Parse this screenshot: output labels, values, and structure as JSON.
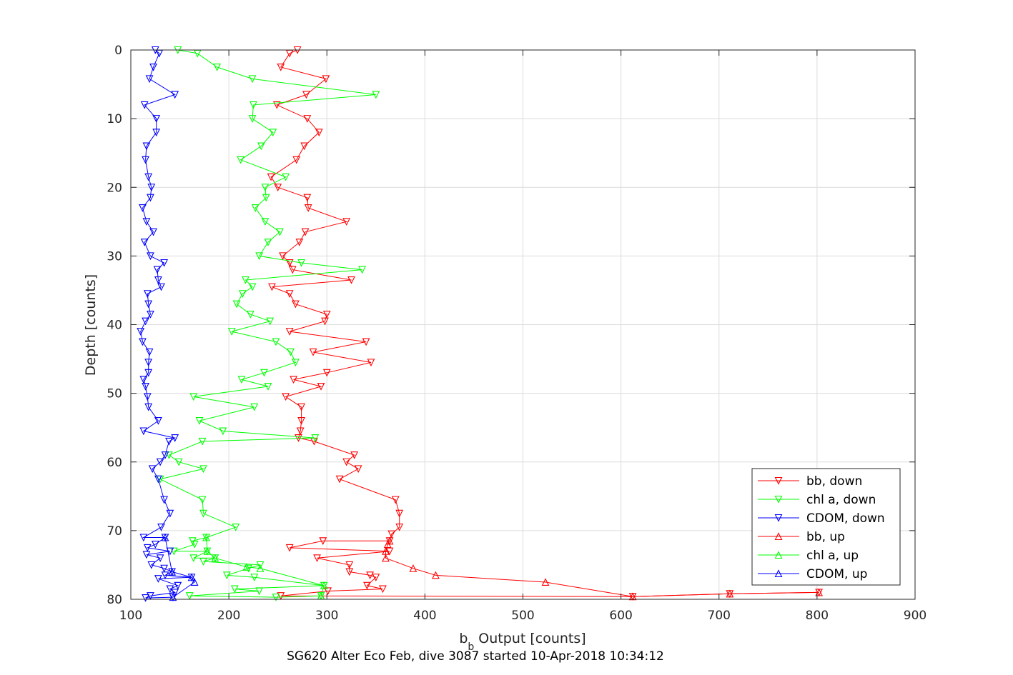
{
  "chart_data": {
    "type": "line",
    "title": "",
    "xlabel": "b",
    "xlabel_sub": "b",
    "xlabel_rest": " Output [counts]",
    "ylabel": "Depth [counts]",
    "caption": "SG620 Alter Eco Feb, dive 3087 started 10-Apr-2018 10:34:12",
    "xlim": [
      100,
      900
    ],
    "ylim": [
      0,
      80
    ],
    "y_reversed": true,
    "xticks": [
      100,
      200,
      300,
      400,
      500,
      600,
      700,
      800,
      900
    ],
    "yticks": [
      0,
      10,
      20,
      30,
      40,
      50,
      60,
      70,
      80
    ],
    "grid": true,
    "legend_position": "bottom-right",
    "series": [
      {
        "name": "bb, down",
        "color": "#ff0000",
        "marker": "triangle-down",
        "points": [
          [
            270,
            0
          ],
          [
            262,
            0.5
          ],
          [
            253,
            2.5
          ],
          [
            299,
            4.2
          ],
          [
            279,
            6.5
          ],
          [
            249,
            8
          ],
          [
            280,
            10
          ],
          [
            292,
            12
          ],
          [
            277,
            14
          ],
          [
            269,
            16
          ],
          [
            243,
            18.5
          ],
          [
            250,
            20
          ],
          [
            280,
            21.5
          ],
          [
            281,
            23
          ],
          [
            320,
            25
          ],
          [
            278,
            26.5
          ],
          [
            272,
            28
          ],
          [
            255,
            30
          ],
          [
            262,
            31
          ],
          [
            265,
            32
          ],
          [
            325,
            33.5
          ],
          [
            244,
            34.5
          ],
          [
            262,
            35.5
          ],
          [
            268,
            37
          ],
          [
            300,
            38.5
          ],
          [
            298,
            39.5
          ],
          [
            262,
            41
          ],
          [
            340,
            42.5
          ],
          [
            286,
            44
          ],
          [
            345,
            45.5
          ],
          [
            300,
            47
          ],
          [
            266,
            48
          ],
          [
            294,
            49
          ],
          [
            258,
            50.5
          ],
          [
            274,
            52
          ],
          [
            274,
            54
          ],
          [
            273,
            55.5
          ],
          [
            271,
            56.5
          ],
          [
            287,
            57
          ],
          [
            328,
            59
          ],
          [
            320,
            60
          ],
          [
            332,
            61
          ],
          [
            313,
            62.5
          ],
          [
            370,
            65.5
          ],
          [
            374,
            67.5
          ],
          [
            374,
            69.5
          ],
          [
            366,
            70.5
          ],
          [
            364,
            71.5
          ],
          [
            296,
            71.5
          ],
          [
            262,
            72.5
          ],
          [
            364,
            73
          ],
          [
            290,
            74
          ],
          [
            323,
            75
          ],
          [
            323,
            76
          ],
          [
            344,
            76.5
          ],
          [
            350,
            76.8
          ],
          [
            341,
            78
          ],
          [
            357,
            78.5
          ],
          [
            301,
            78.8
          ],
          [
            253,
            79.5
          ],
          [
            612,
            79.6
          ],
          [
            711,
            79.2
          ],
          [
            802,
            79
          ]
        ]
      },
      {
        "name": "chl a, down",
        "color": "#00ff00",
        "marker": "triangle-down",
        "points": [
          [
            148,
            0
          ],
          [
            168,
            0.5
          ],
          [
            188,
            2.5
          ],
          [
            224,
            4.2
          ],
          [
            350,
            6.5
          ],
          [
            225,
            8
          ],
          [
            224,
            10
          ],
          [
            245,
            12
          ],
          [
            233,
            14
          ],
          [
            212,
            16
          ],
          [
            258,
            18.5
          ],
          [
            237,
            20
          ],
          [
            238,
            21.5
          ],
          [
            227,
            23
          ],
          [
            237,
            25
          ],
          [
            252,
            26.5
          ],
          [
            240,
            28
          ],
          [
            231,
            30
          ],
          [
            274,
            31
          ],
          [
            336,
            32
          ],
          [
            217,
            33.5
          ],
          [
            224,
            34.5
          ],
          [
            214,
            35.5
          ],
          [
            208,
            37
          ],
          [
            222,
            38.5
          ],
          [
            242,
            39.5
          ],
          [
            203,
            41
          ],
          [
            248,
            42.5
          ],
          [
            263,
            44
          ],
          [
            268,
            45.5
          ],
          [
            236,
            47
          ],
          [
            213,
            48
          ],
          [
            240,
            49
          ],
          [
            164,
            50.5
          ],
          [
            226,
            52
          ],
          [
            170,
            54
          ],
          [
            194,
            55.5
          ],
          [
            288,
            56.5
          ],
          [
            173,
            57
          ],
          [
            139,
            59
          ],
          [
            149,
            60
          ],
          [
            174,
            61
          ],
          [
            130,
            62.5
          ],
          [
            173,
            65.5
          ],
          [
            174,
            67.5
          ],
          [
            207,
            69.5
          ],
          [
            177,
            71
          ],
          [
            163,
            71.5
          ],
          [
            165,
            72
          ],
          [
            144,
            73
          ],
          [
            178,
            73
          ],
          [
            164,
            74
          ],
          [
            186,
            74
          ],
          [
            174,
            74.5
          ],
          [
            232,
            75
          ],
          [
            220,
            75.5
          ],
          [
            198,
            76.5
          ],
          [
            226,
            76.8
          ],
          [
            297,
            78
          ],
          [
            206,
            78.5
          ],
          [
            231,
            78.8
          ],
          [
            160,
            79.5
          ],
          [
            248,
            79.7
          ],
          [
            294,
            79.5
          ]
        ]
      },
      {
        "name": "CDOM, down",
        "color": "#0000ff",
        "marker": "triangle-down",
        "points": [
          [
            125,
            0
          ],
          [
            129,
            0.5
          ],
          [
            123,
            2.5
          ],
          [
            119,
            4.2
          ],
          [
            145,
            6.5
          ],
          [
            114,
            8
          ],
          [
            126,
            10
          ],
          [
            126,
            12
          ],
          [
            116,
            14
          ],
          [
            115,
            16
          ],
          [
            118,
            18.5
          ],
          [
            121,
            20
          ],
          [
            120,
            21.5
          ],
          [
            112,
            23
          ],
          [
            116,
            25
          ],
          [
            123,
            26.5
          ],
          [
            114,
            28
          ],
          [
            120,
            30
          ],
          [
            134,
            31
          ],
          [
            127,
            32
          ],
          [
            128,
            33.5
          ],
          [
            131,
            34.5
          ],
          [
            117,
            35.5
          ],
          [
            118,
            37
          ],
          [
            120,
            38.5
          ],
          [
            115,
            39.5
          ],
          [
            110,
            41
          ],
          [
            112,
            42.5
          ],
          [
            119,
            44
          ],
          [
            118,
            45.5
          ],
          [
            118,
            47
          ],
          [
            113,
            48
          ],
          [
            115,
            49
          ],
          [
            117,
            50.5
          ],
          [
            118,
            52
          ],
          [
            128,
            54
          ],
          [
            113,
            55.5
          ],
          [
            145,
            56.5
          ],
          [
            139,
            57
          ],
          [
            135,
            59
          ],
          [
            130,
            60
          ],
          [
            122,
            61
          ],
          [
            128,
            62.5
          ],
          [
            134,
            65.5
          ],
          [
            140,
            67.5
          ],
          [
            131,
            69.5
          ],
          [
            113,
            71
          ],
          [
            135,
            71
          ],
          [
            125,
            72
          ],
          [
            117,
            72.5
          ],
          [
            140,
            73
          ],
          [
            116,
            73.5
          ],
          [
            130,
            74
          ],
          [
            121,
            75
          ],
          [
            134,
            75.5
          ],
          [
            142,
            76
          ],
          [
            135,
            76.5
          ],
          [
            162,
            76.8
          ],
          [
            128,
            77
          ],
          [
            148,
            78
          ],
          [
            140,
            78.5
          ],
          [
            145,
            79
          ],
          [
            120,
            79.5
          ],
          [
            115,
            79.8
          ],
          [
            143,
            79.7
          ]
        ]
      },
      {
        "name": "bb, up",
        "color": "#ff0000",
        "marker": "triangle-up",
        "points": [
          [
            802,
            79
          ],
          [
            711,
            79.2
          ],
          [
            612,
            79.6
          ],
          [
            523,
            77.5
          ],
          [
            411,
            76.5
          ],
          [
            388,
            75.5
          ],
          [
            360,
            74
          ],
          [
            360,
            73
          ],
          [
            362,
            72
          ],
          [
            364,
            71.5
          ]
        ]
      },
      {
        "name": "chl a, up",
        "color": "#00ff00",
        "marker": "triangle-up",
        "points": [
          [
            294,
            79.5
          ],
          [
            297,
            78
          ],
          [
            232,
            75.5
          ],
          [
            218,
            75.3
          ],
          [
            186,
            74
          ],
          [
            178,
            73
          ],
          [
            177,
            71
          ]
        ]
      },
      {
        "name": "CDOM, up",
        "color": "#0000ff",
        "marker": "triangle-up",
        "points": [
          [
            143,
            79.7
          ],
          [
            165,
            77.5
          ],
          [
            162,
            76.8
          ],
          [
            142,
            76
          ],
          [
            135,
            71
          ]
        ]
      }
    ]
  }
}
